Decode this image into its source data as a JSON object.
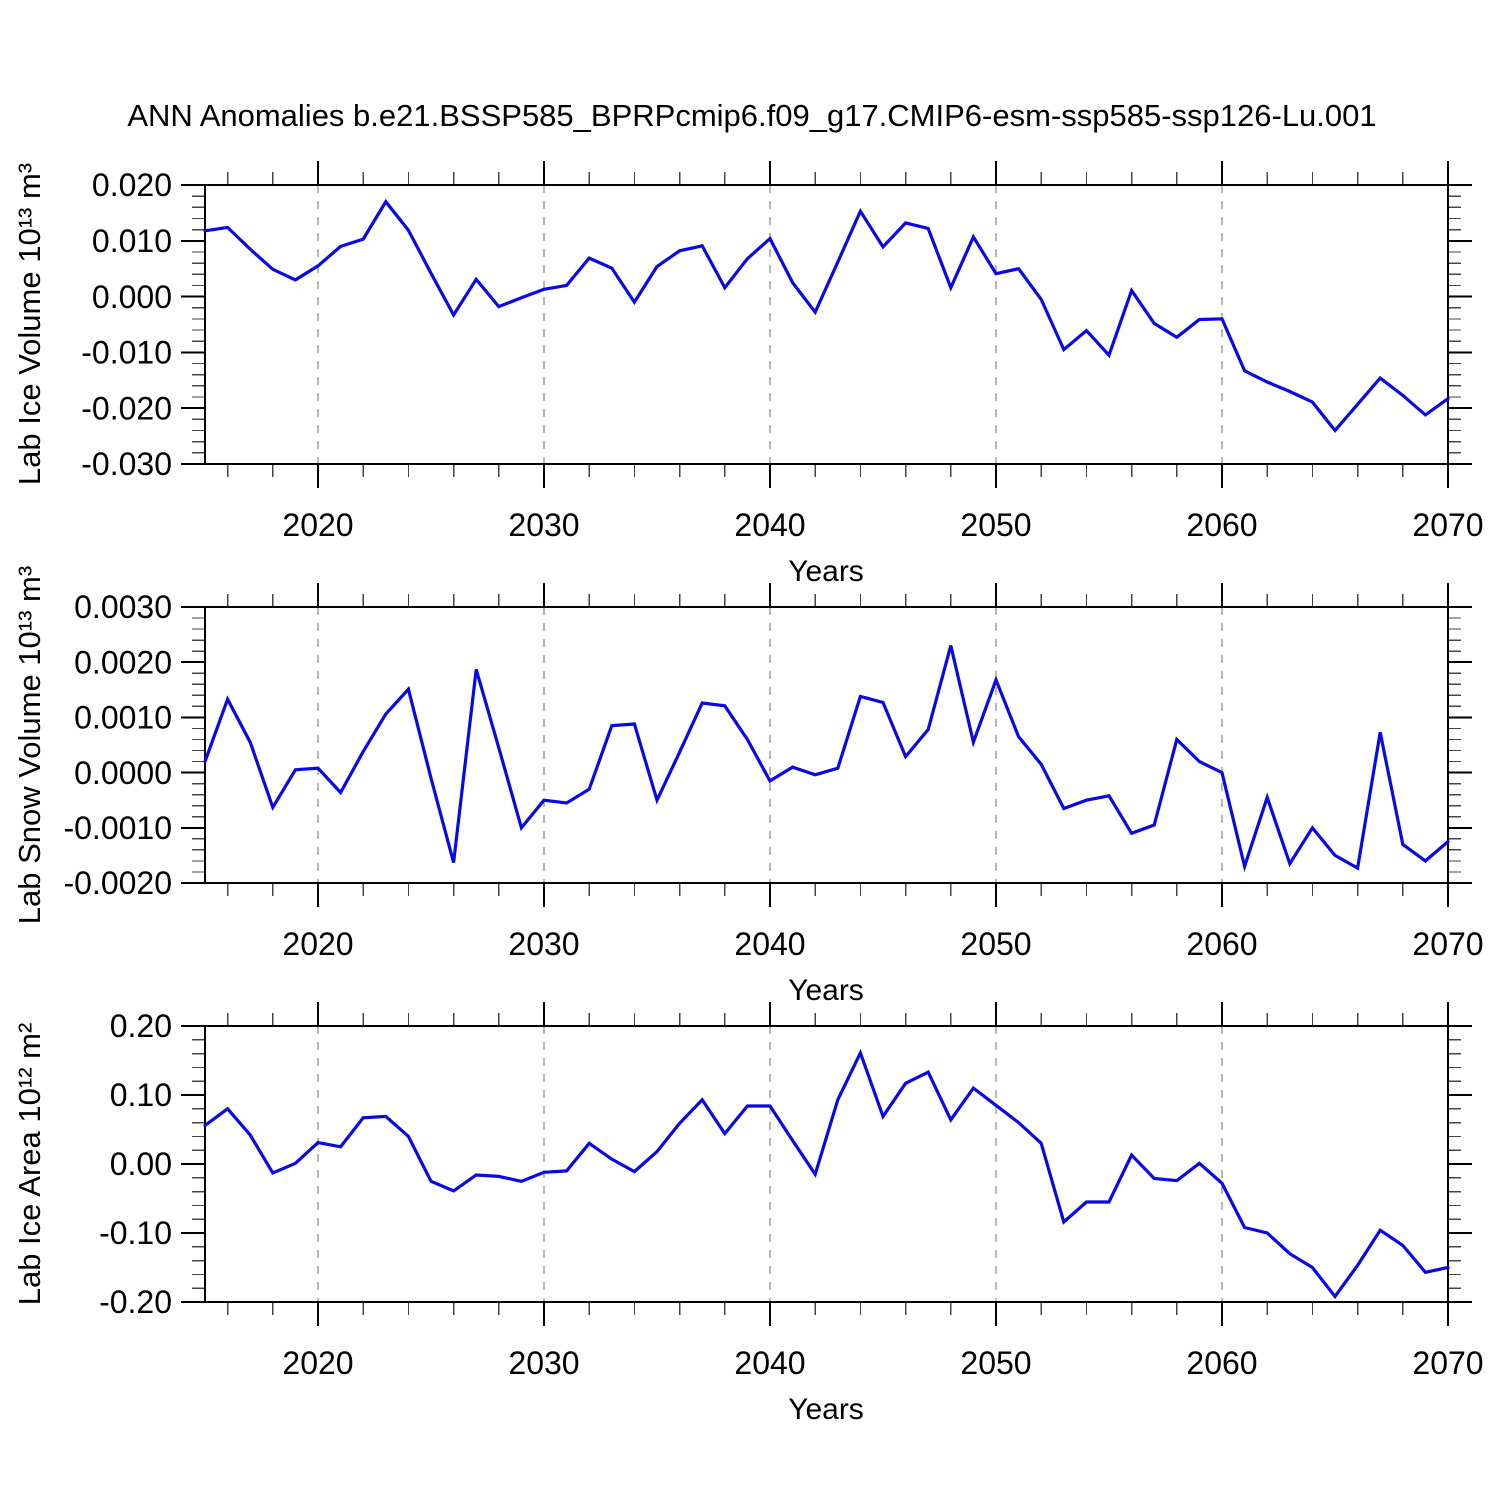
{
  "title": "ANN Anomalies b.e21.BSSP585_BPRPcmip6.f09_g17.CMIP6-esm-ssp585-ssp126-Lu.001",
  "style": {
    "line_color": "#0808E8",
    "grid_color": "#999999",
    "axis_color": "#000000",
    "minor_tick_color": "#444444",
    "background": "#FFFFFF"
  },
  "years": [
    2015,
    2016,
    2017,
    2018,
    2019,
    2020,
    2021,
    2022,
    2023,
    2024,
    2025,
    2026,
    2027,
    2028,
    2029,
    2030,
    2031,
    2032,
    2033,
    2034,
    2035,
    2036,
    2037,
    2038,
    2039,
    2040,
    2041,
    2042,
    2043,
    2044,
    2045,
    2046,
    2047,
    2048,
    2049,
    2050,
    2051,
    2052,
    2053,
    2054,
    2055,
    2056,
    2057,
    2058,
    2059,
    2060,
    2061,
    2062,
    2063,
    2064,
    2065,
    2066,
    2067,
    2068,
    2069,
    2070
  ],
  "chart_data": [
    {
      "type": "line",
      "series_name": "Lab Ice Volume anomaly",
      "xlabel": "Years",
      "ylabel": "Lab Ice Volume 10¹³ m³",
      "x": {
        "start": 2015,
        "end": 2070,
        "step": 1
      },
      "ylim": [
        -0.03,
        0.02
      ],
      "yticks": [
        0.02,
        0.01,
        0.0,
        -0.01,
        -0.02,
        -0.03
      ],
      "ytick_labels": [
        "0.020",
        "0.010",
        "0.000",
        "-0.010",
        "-0.020",
        "-0.030"
      ],
      "y_minor_step": 0.002,
      "xticks": [
        2020,
        2030,
        2040,
        2050,
        2060,
        2070
      ],
      "xtick_labels": [
        "2020",
        "2030",
        "2040",
        "2050",
        "2060",
        "2070"
      ],
      "x_minor_step": 2,
      "grid_x": [
        2020,
        2030,
        2040,
        2050,
        2060
      ],
      "grid_on": true,
      "legend": "none",
      "values": [
        0.0118,
        0.0124,
        0.0085,
        0.0049,
        0.003,
        0.0055,
        0.009,
        0.0103,
        0.017,
        0.0119,
        0.0042,
        -0.0033,
        0.0031,
        -0.0018,
        -0.0002,
        0.0013,
        0.002,
        0.0069,
        0.0051,
        -0.001,
        0.0054,
        0.0082,
        0.0091,
        0.0016,
        0.0068,
        0.0104,
        0.0025,
        -0.0028,
        0.0062,
        0.0153,
        0.0089,
        0.0132,
        0.0122,
        0.0016,
        0.0107,
        0.0041,
        0.005,
        -0.0005,
        -0.0095,
        -0.0061,
        -0.0105,
        0.0011,
        -0.0048,
        -0.0073,
        -0.0041,
        -0.004,
        -0.0133,
        -0.0153,
        -0.017,
        -0.0189,
        -0.024,
        -0.0193,
        -0.0146,
        -0.0177,
        -0.0212,
        -0.0183
      ]
    },
    {
      "type": "line",
      "series_name": "Lab Snow Volume anomaly",
      "xlabel": "Years",
      "ylabel": "Lab Snow Volume 10¹³ m³",
      "x": {
        "start": 2015,
        "end": 2070,
        "step": 1
      },
      "ylim": [
        -0.002,
        0.003
      ],
      "yticks": [
        0.003,
        0.002,
        0.001,
        0.0,
        -0.001,
        -0.002
      ],
      "ytick_labels": [
        "0.0030",
        "0.0020",
        "0.0010",
        "0.0000",
        "-0.0010",
        "-0.0020"
      ],
      "y_minor_step": 0.0002,
      "xticks": [
        2020,
        2030,
        2040,
        2050,
        2060,
        2070
      ],
      "xtick_labels": [
        "2020",
        "2030",
        "2040",
        "2050",
        "2060",
        "2070"
      ],
      "x_minor_step": 2,
      "grid_x": [
        2020,
        2030,
        2040,
        2050,
        2060
      ],
      "grid_on": true,
      "legend": "none",
      "values": [
        0.0002,
        0.00133,
        0.00055,
        -0.00063,
        5e-05,
        8e-05,
        -0.00036,
        0.00038,
        0.00106,
        0.00151,
        -0.0001,
        -0.00163,
        0.00187,
        0.00045,
        -0.001,
        -0.0005,
        -0.00055,
        -0.0003,
        0.00085,
        0.00088,
        -0.0005,
        0.00037,
        0.00126,
        0.00121,
        0.0006,
        -0.00015,
        0.0001,
        -4e-05,
        8e-05,
        0.00138,
        0.00127,
        0.00029,
        0.00078,
        0.0023,
        0.00055,
        0.00168,
        0.00065,
        0.00015,
        -0.00065,
        -0.0005,
        -0.00042,
        -0.0011,
        -0.00095,
        0.0006,
        0.0002,
        0.0,
        -0.0017,
        -0.00045,
        -0.00165,
        -0.001,
        -0.0015,
        -0.00173,
        0.00073,
        -0.0013,
        -0.0016,
        -0.00125
      ]
    },
    {
      "type": "line",
      "series_name": "Lab Ice Area anomaly",
      "xlabel": "Years",
      "ylabel": "Lab Ice Area 10¹² m²",
      "x": {
        "start": 2015,
        "end": 2070,
        "step": 1
      },
      "ylim": [
        -0.2,
        0.2
      ],
      "yticks": [
        0.2,
        0.1,
        0.0,
        -0.1,
        -0.2
      ],
      "ytick_labels": [
        "0.20",
        "0.10",
        "0.00",
        "-0.10",
        "-0.20"
      ],
      "y_minor_step": 0.02,
      "xticks": [
        2020,
        2030,
        2040,
        2050,
        2060,
        2070
      ],
      "xtick_labels": [
        "2020",
        "2030",
        "2040",
        "2050",
        "2060",
        "2070"
      ],
      "x_minor_step": 2,
      "grid_x": [
        2020,
        2030,
        2040,
        2050,
        2060
      ],
      "grid_on": true,
      "legend": "none",
      "values": [
        0.056,
        0.08,
        0.042,
        -0.013,
        0.001,
        0.031,
        0.025,
        0.067,
        0.069,
        0.04,
        -0.025,
        -0.039,
        -0.016,
        -0.018,
        -0.025,
        -0.012,
        -0.01,
        0.03,
        0.007,
        -0.011,
        0.018,
        0.059,
        0.093,
        0.044,
        0.084,
        0.084,
        0.034,
        -0.015,
        0.093,
        0.161,
        0.069,
        0.117,
        0.133,
        0.064,
        0.11,
        0.085,
        0.06,
        0.03,
        -0.084,
        -0.055,
        -0.055,
        0.013,
        -0.021,
        -0.024,
        0.001,
        -0.028,
        -0.092,
        -0.1,
        -0.13,
        -0.15,
        -0.192,
        -0.147,
        -0.096,
        -0.118,
        -0.157,
        -0.15
      ]
    }
  ]
}
